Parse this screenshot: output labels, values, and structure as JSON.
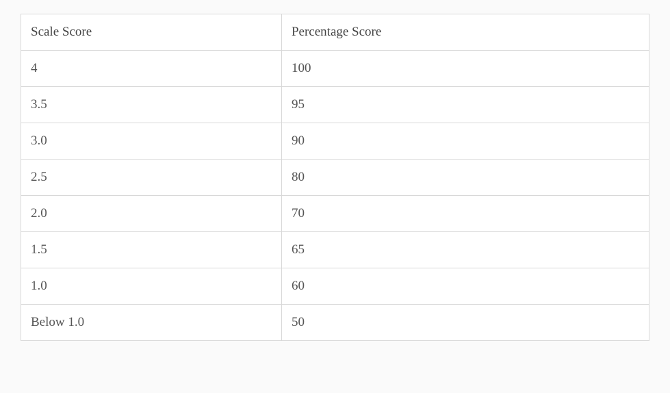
{
  "table": {
    "columns": [
      "Scale Score",
      "Percentage Score"
    ],
    "rows": [
      [
        "4",
        "100"
      ],
      [
        "3.5",
        "95"
      ],
      [
        "3.0",
        "90"
      ],
      [
        "2.5",
        "80"
      ],
      [
        "2.0",
        "70"
      ],
      [
        "1.5",
        "65"
      ],
      [
        "1.0",
        "60"
      ],
      [
        "Below 1.0",
        "50"
      ]
    ],
    "border_color": "#d8d8d8",
    "divider_color": "#555555",
    "text_color": "#555555",
    "header_text_color": "#444444",
    "background_color": "#ffffff",
    "page_background": "#fafafa",
    "font_size": 19,
    "cell_padding": "15px 14px",
    "col1_width_pct": 41.5
  }
}
